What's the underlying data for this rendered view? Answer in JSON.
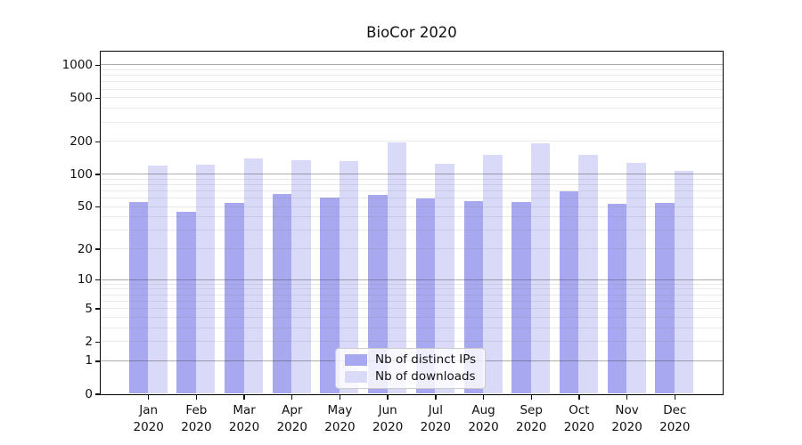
{
  "title": "BioCor 2020",
  "chart_data": {
    "type": "bar",
    "title": "BioCor 2020",
    "xlabel": "",
    "ylabel": "",
    "yscale": "log10(1+x)",
    "ylim": [
      0,
      1340
    ],
    "grid": true,
    "legend_position": "lower center",
    "months": [
      {
        "month": "Jan",
        "year": "2020"
      },
      {
        "month": "Feb",
        "year": "2020"
      },
      {
        "month": "Mar",
        "year": "2020"
      },
      {
        "month": "Apr",
        "year": "2020"
      },
      {
        "month": "May",
        "year": "2020"
      },
      {
        "month": "Jun",
        "year": "2020"
      },
      {
        "month": "Jul",
        "year": "2020"
      },
      {
        "month": "Aug",
        "year": "2020"
      },
      {
        "month": "Sep",
        "year": "2020"
      },
      {
        "month": "Oct",
        "year": "2020"
      },
      {
        "month": "Nov",
        "year": "2020"
      },
      {
        "month": "Dec",
        "year": "2020"
      }
    ],
    "categories": [
      "Jan 2020",
      "Feb 2020",
      "Mar 2020",
      "Apr 2020",
      "May 2020",
      "Jun 2020",
      "Jul 2020",
      "Aug 2020",
      "Sep 2020",
      "Oct 2020",
      "Nov 2020",
      "Dec 2020"
    ],
    "series": [
      {
        "name": "Nb of distinct IPs",
        "color": "#a8a8f0",
        "values": [
          55,
          45,
          54,
          66,
          61,
          64,
          59,
          56,
          55,
          69,
          53,
          54
        ]
      },
      {
        "name": "Nb of downloads",
        "color": "#d9d9f8",
        "values": [
          120,
          122,
          140,
          133,
          132,
          195,
          124,
          150,
          192,
          150,
          126,
          107
        ]
      }
    ],
    "y_ticks": [
      0,
      1,
      2,
      5,
      10,
      20,
      50,
      100,
      200,
      500,
      1000
    ],
    "y_major_gridlines": [
      1,
      10,
      100,
      1000
    ]
  },
  "colors": {
    "background": "#ffffff",
    "major_grid": "#b0b0b0",
    "minor_grid": "#e8e8e8",
    "axis": "#000000"
  }
}
